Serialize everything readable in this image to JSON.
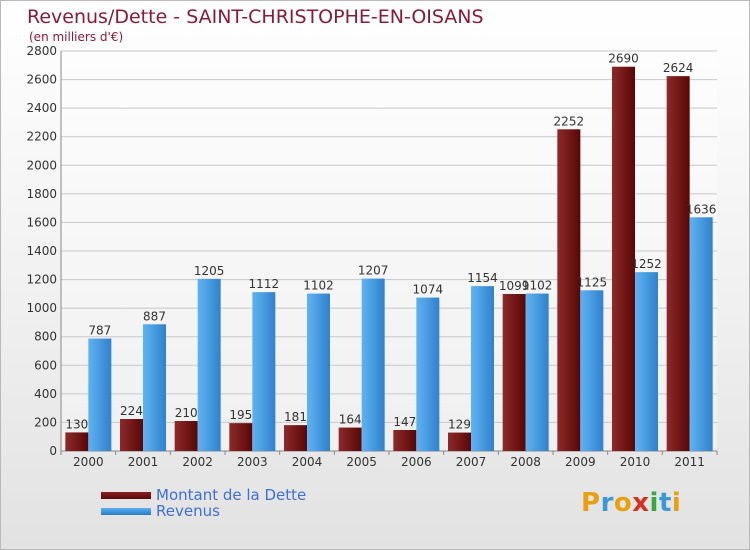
{
  "chart_data": {
    "type": "bar",
    "title": "Revenus/Dette - SAINT-CHRISTOPHE-EN-OISANS",
    "subtitle": "(en milliers d'€)",
    "categories": [
      "2000",
      "2001",
      "2002",
      "2003",
      "2004",
      "2005",
      "2006",
      "2007",
      "2008",
      "2009",
      "2010",
      "2011"
    ],
    "series": [
      {
        "name": "Montant de la Dette",
        "color": "#6a1010",
        "values": [
          130,
          224,
          210,
          195,
          181,
          164,
          147,
          129,
          1099,
          2252,
          2690,
          2624
        ]
      },
      {
        "name": "Revenus",
        "color": "#3c90d8",
        "values": [
          787,
          887,
          1205,
          1112,
          1102,
          1207,
          1074,
          1154,
          1102,
          1125,
          1252,
          1636
        ]
      }
    ],
    "ylim": [
      0,
      2800
    ],
    "yticks": [
      0,
      200,
      400,
      600,
      800,
      1000,
      1200,
      1400,
      1600,
      1800,
      2000,
      2200,
      2400,
      2600,
      2800
    ],
    "grid": true,
    "legend_position": "bottom-left"
  },
  "logo": {
    "text": "Proxiti",
    "letters": [
      {
        "ch": "P",
        "color": "#e8a010"
      },
      {
        "ch": "r",
        "color": "#3a9ad8"
      },
      {
        "ch": "o",
        "color": "#e8a010"
      },
      {
        "ch": "x",
        "color": "#d83020"
      },
      {
        "ch": "i",
        "color": "#3aa840"
      },
      {
        "ch": "t",
        "color": "#3a9ad8"
      },
      {
        "ch": "i",
        "color": "#e8a010"
      }
    ]
  }
}
